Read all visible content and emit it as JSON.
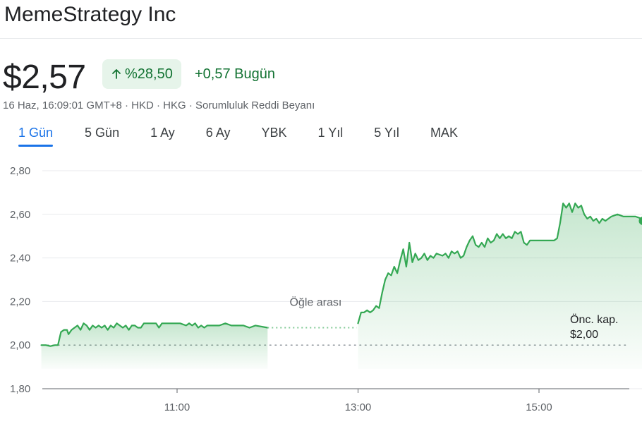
{
  "header": {
    "title": "MemeStrategy Inc"
  },
  "quote": {
    "price": "$2,57",
    "percent_change": "%28,50",
    "percent_icon": "arrow-up-icon",
    "absolute_change": "+0,57 Bugün",
    "meta_prefix": "16 Haz, 16:09:01 GMT+8 · HKD · HKG · ",
    "disclaimer_link": "Sorumluluk Reddi Beyanı"
  },
  "tabs": [
    {
      "label": "1 Gün",
      "active": true
    },
    {
      "label": "5 Gün"
    },
    {
      "label": "1 Ay"
    },
    {
      "label": "6 Ay"
    },
    {
      "label": "YBK"
    },
    {
      "label": "1 Yıl"
    },
    {
      "label": "5 Yıl"
    },
    {
      "label": "MAK"
    }
  ],
  "colors": {
    "line": "#34a853",
    "fill": "#34a853",
    "grid": "#e8eaed",
    "dotted": "#9aa0a6",
    "text": "#202124",
    "muted": "#5f6368"
  },
  "chart_data": {
    "type": "line",
    "x_unit": "time (HH:MM)",
    "ylim": [
      1.8,
      2.8
    ],
    "y_ticks": [
      1.8,
      2.0,
      2.2,
      2.4,
      2.6,
      2.8
    ],
    "y_tick_labels": [
      "1,80",
      "2,00",
      "2,20",
      "2,40",
      "2,60",
      "2,80"
    ],
    "x_ticks": [
      "11:00",
      "13:00",
      "15:00"
    ],
    "xlim": [
      "09:30",
      "16:10"
    ],
    "lunch_break": {
      "start": "12:00",
      "end": "13:00",
      "label": "Öğle arası"
    },
    "previous_close": {
      "value": 2.0,
      "label_line1": "Önc. kap.",
      "label_line2": "$2,00"
    },
    "series": [
      {
        "session": "morning",
        "points": [
          [
            "09:30",
            2.0
          ],
          [
            "09:33",
            2.0
          ],
          [
            "09:36",
            1.995
          ],
          [
            "09:39",
            2.0
          ],
          [
            "09:41",
            2.0
          ],
          [
            "09:43",
            2.06
          ],
          [
            "09:45",
            2.07
          ],
          [
            "09:47",
            2.07
          ],
          [
            "09:48",
            2.05
          ],
          [
            "09:50",
            2.07
          ],
          [
            "09:52",
            2.08
          ],
          [
            "09:54",
            2.09
          ],
          [
            "09:56",
            2.07
          ],
          [
            "09:58",
            2.1
          ],
          [
            "10:00",
            2.09
          ],
          [
            "10:02",
            2.07
          ],
          [
            "10:04",
            2.09
          ],
          [
            "10:06",
            2.08
          ],
          [
            "10:08",
            2.09
          ],
          [
            "10:10",
            2.08
          ],
          [
            "10:12",
            2.09
          ],
          [
            "10:14",
            2.07
          ],
          [
            "10:16",
            2.09
          ],
          [
            "10:18",
            2.08
          ],
          [
            "10:20",
            2.1
          ],
          [
            "10:22",
            2.09
          ],
          [
            "10:24",
            2.08
          ],
          [
            "10:26",
            2.09
          ],
          [
            "10:28",
            2.07
          ],
          [
            "10:30",
            2.09
          ],
          [
            "10:32",
            2.09
          ],
          [
            "10:34",
            2.08
          ],
          [
            "10:36",
            2.08
          ],
          [
            "10:38",
            2.1
          ],
          [
            "10:42",
            2.1
          ],
          [
            "10:46",
            2.1
          ],
          [
            "10:48",
            2.08
          ],
          [
            "10:50",
            2.1
          ],
          [
            "10:54",
            2.1
          ],
          [
            "10:58",
            2.1
          ],
          [
            "11:02",
            2.1
          ],
          [
            "11:06",
            2.09
          ],
          [
            "11:08",
            2.1
          ],
          [
            "11:10",
            2.09
          ],
          [
            "11:12",
            2.1
          ],
          [
            "11:14",
            2.08
          ],
          [
            "11:16",
            2.09
          ],
          [
            "11:18",
            2.08
          ],
          [
            "11:20",
            2.09
          ],
          [
            "11:24",
            2.09
          ],
          [
            "11:28",
            2.09
          ],
          [
            "11:32",
            2.1
          ],
          [
            "11:36",
            2.09
          ],
          [
            "11:40",
            2.09
          ],
          [
            "11:44",
            2.09
          ],
          [
            "11:48",
            2.08
          ],
          [
            "11:52",
            2.09
          ],
          [
            "11:56",
            2.085
          ],
          [
            "12:00",
            2.08
          ]
        ]
      },
      {
        "session": "afternoon",
        "points": [
          [
            "13:00",
            2.1
          ],
          [
            "13:02",
            2.15
          ],
          [
            "13:04",
            2.15
          ],
          [
            "13:06",
            2.16
          ],
          [
            "13:08",
            2.15
          ],
          [
            "13:10",
            2.16
          ],
          [
            "13:12",
            2.18
          ],
          [
            "13:14",
            2.17
          ],
          [
            "13:16",
            2.24
          ],
          [
            "13:18",
            2.3
          ],
          [
            "13:20",
            2.33
          ],
          [
            "13:22",
            2.32
          ],
          [
            "13:24",
            2.36
          ],
          [
            "13:26",
            2.33
          ],
          [
            "13:28",
            2.39
          ],
          [
            "13:30",
            2.44
          ],
          [
            "13:32",
            2.36
          ],
          [
            "13:34",
            2.47
          ],
          [
            "13:36",
            2.38
          ],
          [
            "13:38",
            2.42
          ],
          [
            "13:40",
            2.39
          ],
          [
            "13:42",
            2.4
          ],
          [
            "13:44",
            2.42
          ],
          [
            "13:46",
            2.39
          ],
          [
            "13:48",
            2.41
          ],
          [
            "13:50",
            2.4
          ],
          [
            "13:52",
            2.42
          ],
          [
            "13:56",
            2.41
          ],
          [
            "13:58",
            2.42
          ],
          [
            "14:00",
            2.4
          ],
          [
            "14:02",
            2.43
          ],
          [
            "14:04",
            2.42
          ],
          [
            "14:06",
            2.43
          ],
          [
            "14:08",
            2.4
          ],
          [
            "14:10",
            2.41
          ],
          [
            "14:12",
            2.45
          ],
          [
            "14:14",
            2.48
          ],
          [
            "14:16",
            2.5
          ],
          [
            "14:18",
            2.46
          ],
          [
            "14:20",
            2.45
          ],
          [
            "14:22",
            2.47
          ],
          [
            "14:24",
            2.45
          ],
          [
            "14:26",
            2.49
          ],
          [
            "14:28",
            2.47
          ],
          [
            "14:30",
            2.48
          ],
          [
            "14:32",
            2.51
          ],
          [
            "14:34",
            2.49
          ],
          [
            "14:36",
            2.51
          ],
          [
            "14:38",
            2.49
          ],
          [
            "14:40",
            2.5
          ],
          [
            "14:42",
            2.49
          ],
          [
            "14:44",
            2.52
          ],
          [
            "14:46",
            2.51
          ],
          [
            "14:48",
            2.52
          ],
          [
            "14:50",
            2.47
          ],
          [
            "14:52",
            2.46
          ],
          [
            "14:54",
            2.48
          ],
          [
            "14:58",
            2.48
          ],
          [
            "15:02",
            2.48
          ],
          [
            "15:06",
            2.48
          ],
          [
            "15:10",
            2.48
          ],
          [
            "15:12",
            2.49
          ],
          [
            "15:14",
            2.56
          ],
          [
            "15:16",
            2.65
          ],
          [
            "15:18",
            2.63
          ],
          [
            "15:20",
            2.65
          ],
          [
            "15:22",
            2.61
          ],
          [
            "15:24",
            2.65
          ],
          [
            "15:26",
            2.63
          ],
          [
            "15:28",
            2.64
          ],
          [
            "15:30",
            2.6
          ],
          [
            "15:32",
            2.58
          ],
          [
            "15:34",
            2.59
          ],
          [
            "15:36",
            2.57
          ],
          [
            "15:38",
            2.58
          ],
          [
            "15:40",
            2.56
          ],
          [
            "15:42",
            2.58
          ],
          [
            "15:44",
            2.57
          ],
          [
            "15:46",
            2.58
          ],
          [
            "15:48",
            2.59
          ],
          [
            "15:52",
            2.6
          ],
          [
            "15:56",
            2.59
          ],
          [
            "16:00",
            2.59
          ],
          [
            "16:04",
            2.59
          ],
          [
            "16:08",
            2.58
          ],
          [
            "16:09",
            2.57
          ]
        ]
      }
    ]
  }
}
